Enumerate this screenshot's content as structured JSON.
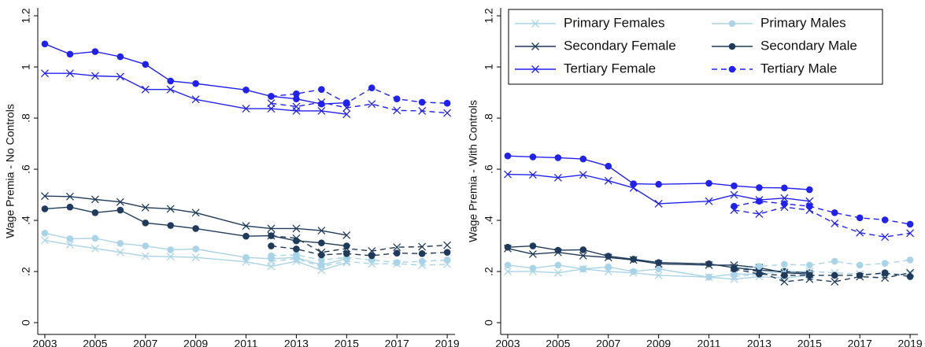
{
  "chart_data": [
    {
      "type": "line",
      "ylabel": "Wage Premia - No Controls",
      "xlim": [
        2002.72,
        2019.31
      ],
      "ylim": [
        -0.046,
        1.231
      ],
      "xticks": [
        2003,
        2005,
        2007,
        2009,
        2011,
        2013,
        2015,
        2017,
        2019
      ],
      "yticks": [
        0,
        {
          "value": 0.2,
          "label": ".2"
        },
        {
          "value": 0.4,
          "label": ".4"
        },
        {
          "value": 0.6,
          "label": ".6"
        },
        {
          "value": 0.8,
          "label": ".8"
        },
        1,
        {
          "value": 1.2,
          "label": "1.2"
        }
      ],
      "series": [
        {
          "color": "#a9d3e6",
          "marker": "x",
          "dash": false,
          "x": [
            2003,
            2004,
            2005,
            2006,
            2007,
            2008,
            2009,
            2011,
            2012,
            2013,
            2014,
            2015
          ],
          "values": [
            0.322,
            0.305,
            0.29,
            0.275,
            0.26,
            0.258,
            0.255,
            0.238,
            0.22,
            0.24,
            0.205,
            0.235
          ]
        },
        {
          "color": "#a9d3e6",
          "marker": "o",
          "dash": false,
          "x": [
            2003,
            2004,
            2005,
            2006,
            2007,
            2008,
            2009,
            2011,
            2012,
            2013,
            2014,
            2015
          ],
          "values": [
            0.35,
            0.328,
            0.33,
            0.31,
            0.3,
            0.285,
            0.288,
            0.255,
            0.25,
            0.255,
            0.225,
            0.25
          ]
        },
        {
          "color": "#1f3a5a",
          "marker": "x",
          "dash": false,
          "x": [
            2003,
            2004,
            2005,
            2006,
            2007,
            2008,
            2009,
            2011,
            2012,
            2013,
            2014,
            2015
          ],
          "values": [
            0.495,
            0.493,
            0.482,
            0.472,
            0.45,
            0.445,
            0.43,
            0.378,
            0.368,
            0.368,
            0.36,
            0.342
          ]
        },
        {
          "color": "#1f3a5a",
          "marker": "o",
          "dash": false,
          "x": [
            2003,
            2004,
            2005,
            2006,
            2007,
            2008,
            2009,
            2011,
            2012,
            2013,
            2014,
            2015
          ],
          "values": [
            0.445,
            0.452,
            0.43,
            0.44,
            0.39,
            0.38,
            0.368,
            0.338,
            0.34,
            0.32,
            0.312,
            0.3
          ]
        },
        {
          "color": "#2121ee",
          "marker": "x",
          "dash": false,
          "x": [
            2003,
            2004,
            2005,
            2006,
            2007,
            2008,
            2009,
            2011,
            2012,
            2013,
            2014,
            2015
          ],
          "values": [
            0.975,
            0.975,
            0.965,
            0.962,
            0.912,
            0.912,
            0.873,
            0.837,
            0.837,
            0.828,
            0.828,
            0.815
          ]
        },
        {
          "color": "#2121ee",
          "marker": "o",
          "dash": false,
          "x": [
            2003,
            2004,
            2005,
            2006,
            2007,
            2008,
            2009,
            2011,
            2012,
            2013,
            2014,
            2015
          ],
          "values": [
            1.09,
            1.05,
            1.06,
            1.04,
            1.01,
            0.945,
            0.935,
            0.91,
            0.885,
            0.875,
            0.855,
            0.86
          ]
        },
        {
          "color": "#a9d3e6",
          "marker": "x",
          "dash": true,
          "x": [
            2012,
            2013,
            2014,
            2015,
            2016,
            2017,
            2018,
            2019
          ],
          "values": [
            0.24,
            0.25,
            0.22,
            0.24,
            0.23,
            0.23,
            0.225,
            0.228
          ]
        },
        {
          "color": "#a9d3e6",
          "marker": "o",
          "dash": true,
          "x": [
            2012,
            2013,
            2014,
            2015,
            2016,
            2017,
            2018,
            2019
          ],
          "values": [
            0.262,
            0.265,
            0.245,
            0.255,
            0.245,
            0.235,
            0.24,
            0.245
          ]
        },
        {
          "color": "#1f3a5a",
          "marker": "x",
          "dash": true,
          "x": [
            2012,
            2013,
            2014,
            2015,
            2016,
            2017,
            2018,
            2019
          ],
          "values": [
            0.34,
            0.33,
            0.275,
            0.29,
            0.28,
            0.295,
            0.297,
            0.303
          ]
        },
        {
          "color": "#1f3a5a",
          "marker": "o",
          "dash": true,
          "x": [
            2012,
            2013,
            2014,
            2015,
            2016,
            2017,
            2018,
            2019
          ],
          "values": [
            0.3,
            0.288,
            0.265,
            0.27,
            0.262,
            0.272,
            0.27,
            0.275
          ]
        },
        {
          "color": "#2121ee",
          "marker": "x",
          "dash": true,
          "x": [
            2012,
            2013,
            2014,
            2015,
            2016,
            2017,
            2018,
            2019
          ],
          "values": [
            0.858,
            0.845,
            0.862,
            0.84,
            0.855,
            0.83,
            0.828,
            0.82
          ]
        },
        {
          "color": "#2121ee",
          "marker": "o",
          "dash": true,
          "x": [
            2012,
            2013,
            2014,
            2015,
            2016,
            2017,
            2018,
            2019
          ],
          "values": [
            0.885,
            0.895,
            0.912,
            0.858,
            0.918,
            0.875,
            0.862,
            0.858
          ]
        }
      ]
    },
    {
      "type": "line",
      "ylabel": "Wage Premia - With Controls",
      "legend": "top-left",
      "xlim": [
        2002.72,
        2019.31
      ],
      "ylim": [
        -0.046,
        1.231
      ],
      "xticks": [
        2003,
        2005,
        2007,
        2009,
        2011,
        2013,
        2015,
        2017,
        2019
      ],
      "yticks": [
        0,
        {
          "value": 0.2,
          "label": ".2"
        },
        {
          "value": 0.4,
          "label": ".4"
        },
        {
          "value": 0.6,
          "label": ".6"
        },
        {
          "value": 0.8,
          "label": ".8"
        },
        1,
        {
          "value": 1.2,
          "label": "1.2"
        }
      ],
      "series": [
        {
          "name": "Primary Females",
          "color": "#a9d3e6",
          "marker": "x",
          "dash": false,
          "x": [
            2003,
            2004,
            2005,
            2006,
            2007,
            2008,
            2009,
            2011,
            2012,
            2013,
            2014,
            2015
          ],
          "values": [
            0.2,
            0.2,
            0.195,
            0.21,
            0.2,
            0.195,
            0.185,
            0.178,
            0.17,
            0.18,
            0.175,
            0.185
          ]
        },
        {
          "name": "Primary Males",
          "color": "#a9d3e6",
          "marker": "o",
          "dash": false,
          "x": [
            2003,
            2004,
            2005,
            2006,
            2007,
            2008,
            2009,
            2011,
            2012,
            2013,
            2014,
            2015
          ],
          "values": [
            0.225,
            0.213,
            0.225,
            0.21,
            0.218,
            0.2,
            0.21,
            0.178,
            0.19,
            0.19,
            0.2,
            0.195
          ]
        },
        {
          "name": "Secondary Female",
          "color": "#1f3a5a",
          "marker": "x",
          "dash": false,
          "x": [
            2003,
            2004,
            2005,
            2006,
            2007,
            2008,
            2009,
            2011,
            2012,
            2013,
            2014,
            2015
          ],
          "values": [
            0.29,
            0.268,
            0.275,
            0.262,
            0.255,
            0.245,
            0.23,
            0.225,
            0.225,
            0.215,
            0.195,
            0.19
          ]
        },
        {
          "name": "Secondary Male",
          "color": "#1f3a5a",
          "marker": "o",
          "dash": false,
          "x": [
            2003,
            2004,
            2005,
            2006,
            2007,
            2008,
            2009,
            2011,
            2012,
            2013,
            2014,
            2015
          ],
          "values": [
            0.295,
            0.3,
            0.283,
            0.285,
            0.26,
            0.248,
            0.235,
            0.23,
            0.215,
            0.205,
            0.2,
            0.195
          ]
        },
        {
          "name": "Tertiary Female",
          "color": "#2121ee",
          "marker": "x",
          "dash": false,
          "x": [
            2003,
            2004,
            2005,
            2006,
            2007,
            2008,
            2009,
            2011,
            2012,
            2013,
            2014,
            2015
          ],
          "values": [
            0.58,
            0.578,
            0.567,
            0.578,
            0.555,
            0.527,
            0.465,
            0.475,
            0.5,
            0.48,
            0.487,
            0.475
          ]
        },
        {
          "name": "Tertiary Male",
          "color": "#2121ee",
          "marker": "o",
          "dash": true,
          "x": [
            2012,
            2013,
            2014,
            2015,
            2016,
            2017,
            2018,
            2019
          ],
          "values": [
            0.455,
            0.475,
            0.465,
            0.455,
            0.43,
            0.41,
            0.402,
            0.385
          ]
        },
        {
          "color": "#2121ee",
          "marker": "o",
          "dash": false,
          "x": [
            2003,
            2004,
            2005,
            2006,
            2007,
            2008,
            2009,
            2011,
            2012,
            2013,
            2014,
            2015
          ],
          "values": [
            0.652,
            0.648,
            0.645,
            0.64,
            0.612,
            0.543,
            0.541,
            0.545,
            0.535,
            0.528,
            0.527,
            0.52
          ]
        },
        {
          "color": "#a9d3e6",
          "marker": "x",
          "dash": true,
          "x": [
            2012,
            2013,
            2014,
            2015,
            2016,
            2017,
            2018,
            2019
          ],
          "values": [
            0.18,
            0.19,
            0.2,
            0.2,
            0.195,
            0.19,
            0.19,
            0.19
          ]
        },
        {
          "color": "#a9d3e6",
          "marker": "o",
          "dash": true,
          "x": [
            2012,
            2013,
            2014,
            2015,
            2016,
            2017,
            2018,
            2019
          ],
          "values": [
            0.21,
            0.22,
            0.228,
            0.225,
            0.24,
            0.225,
            0.232,
            0.245
          ]
        },
        {
          "color": "#1f3a5a",
          "marker": "x",
          "dash": true,
          "x": [
            2012,
            2013,
            2014,
            2015,
            2016,
            2017,
            2018,
            2019
          ],
          "values": [
            0.215,
            0.2,
            0.16,
            0.17,
            0.16,
            0.18,
            0.175,
            0.195
          ]
        },
        {
          "color": "#1f3a5a",
          "marker": "o",
          "dash": true,
          "x": [
            2012,
            2013,
            2014,
            2015,
            2016,
            2017,
            2018,
            2019
          ],
          "values": [
            0.21,
            0.19,
            0.185,
            0.185,
            0.185,
            0.185,
            0.195,
            0.18
          ]
        },
        {
          "color": "#2121ee",
          "marker": "x",
          "dash": true,
          "x": [
            2012,
            2013,
            2014,
            2015,
            2016,
            2017,
            2018,
            2019
          ],
          "values": [
            0.44,
            0.425,
            0.452,
            0.44,
            0.388,
            0.352,
            0.335,
            0.35
          ]
        }
      ]
    }
  ]
}
